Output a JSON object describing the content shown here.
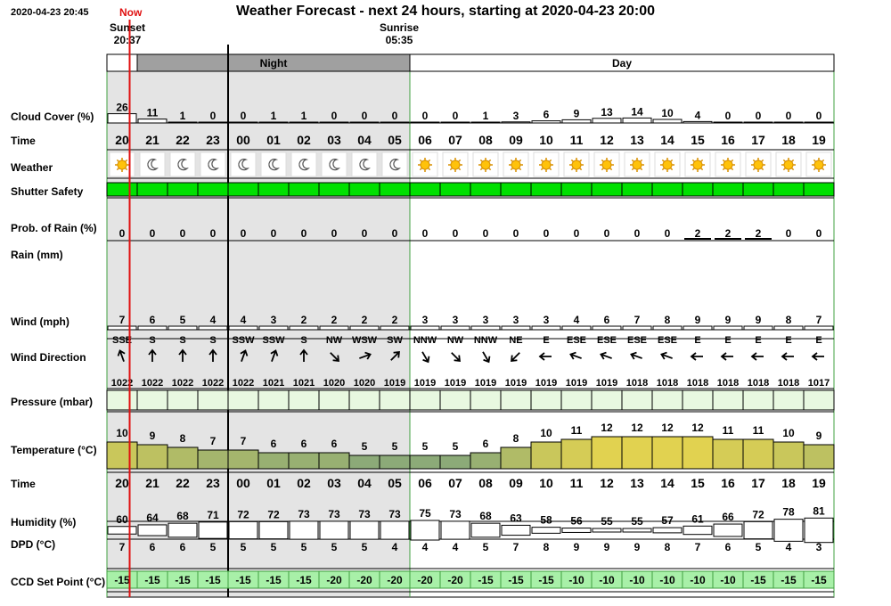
{
  "title": "Weather Forecast - next 24 hours, starting at 2020-04-23 20:00",
  "timestamp": "2020-04-23 20:45",
  "now_label": "Now",
  "sunset": {
    "label": "Sunset",
    "time": "20:37"
  },
  "sunrise": {
    "label": "Sunrise",
    "time": "05:35"
  },
  "period_labels": {
    "night": "Night",
    "day": "Day"
  },
  "row_labels": {
    "cloud": "Cloud Cover (%)",
    "time": "Time",
    "weather": "Weather",
    "shutter": "Shutter Safety",
    "rain_prob": "Prob. of Rain (%)",
    "rain": "Rain (mm)",
    "wind": "Wind (mph)",
    "wind_dir": "Wind Direction",
    "pressure": "Pressure (mbar)",
    "temperature": "Temperature (°C)",
    "time2": "Time",
    "humidity": "Humidity (%)",
    "dpd": "DPD (°C)",
    "ccd": "CCD Set Point (°C)"
  },
  "colors": {
    "now_line": "#e01010",
    "night_shade": "#e4e4e4",
    "night_header": "#a0a0a0",
    "shutter_safe": "#00e000",
    "pressure_fill": "#e8f8e0",
    "ccd_fill": "#a8f0a8",
    "grid_green": "#40a040"
  },
  "chart_data": {
    "type": "table",
    "hours": [
      "20",
      "21",
      "22",
      "23",
      "00",
      "01",
      "02",
      "03",
      "04",
      "05",
      "06",
      "07",
      "08",
      "09",
      "10",
      "11",
      "12",
      "13",
      "14",
      "15",
      "16",
      "17",
      "18",
      "19"
    ],
    "night_hours_count": 10,
    "cloud_cover": [
      26,
      11,
      1,
      0,
      0,
      1,
      1,
      0,
      0,
      0,
      0,
      0,
      1,
      3,
      6,
      9,
      13,
      14,
      10,
      4,
      0,
      0,
      0,
      0
    ],
    "weather_icons": [
      "sun-icon",
      "moon-icon",
      "moon-icon",
      "moon-icon",
      "moon-icon",
      "moon-icon",
      "moon-icon",
      "moon-icon",
      "moon-icon",
      "moon-icon",
      "sun-icon",
      "sun-icon",
      "sun-icon",
      "sun-icon",
      "sun-icon",
      "sun-icon",
      "sun-icon",
      "sun-icon",
      "sun-icon",
      "sun-icon",
      "sun-icon",
      "sun-icon",
      "sun-icon",
      "sun-icon"
    ],
    "shutter_safe": [
      true,
      true,
      true,
      true,
      true,
      true,
      true,
      true,
      true,
      true,
      true,
      true,
      true,
      true,
      true,
      true,
      true,
      true,
      true,
      true,
      true,
      true,
      true,
      true
    ],
    "rain_probability": [
      0,
      0,
      0,
      0,
      0,
      0,
      0,
      0,
      0,
      0,
      0,
      0,
      0,
      0,
      0,
      0,
      0,
      0,
      0,
      2,
      2,
      2,
      0,
      0
    ],
    "rain_mm": [
      0,
      0,
      0,
      0,
      0,
      0,
      0,
      0,
      0,
      0,
      0,
      0,
      0,
      0,
      0,
      0,
      0,
      0,
      0,
      0,
      0,
      0,
      0,
      0
    ],
    "wind_mph": [
      7,
      6,
      5,
      4,
      4,
      3,
      2,
      2,
      2,
      2,
      3,
      3,
      3,
      3,
      3,
      4,
      6,
      7,
      8,
      9,
      9,
      9,
      8,
      7
    ],
    "wind_direction": [
      "SSE",
      "S",
      "S",
      "S",
      "SSW",
      "SSW",
      "S",
      "NW",
      "WSW",
      "SW",
      "NNW",
      "NW",
      "NNW",
      "NE",
      "E",
      "ESE",
      "ESE",
      "ESE",
      "ESE",
      "E",
      "E",
      "E",
      "E",
      "E"
    ],
    "wind_arrow_rotation_deg": [
      -20,
      0,
      0,
      0,
      20,
      20,
      0,
      135,
      70,
      45,
      150,
      135,
      150,
      -135,
      -90,
      -70,
      -70,
      -70,
      -70,
      -90,
      -90,
      -90,
      -90,
      -90
    ],
    "pressure_mbar": [
      1022,
      1022,
      1022,
      1022,
      1022,
      1021,
      1021,
      1020,
      1020,
      1019,
      1019,
      1019,
      1019,
      1019,
      1019,
      1019,
      1019,
      1018,
      1018,
      1018,
      1018,
      1018,
      1018,
      1017
    ],
    "temperature_c": [
      10,
      9,
      8,
      7,
      7,
      6,
      6,
      6,
      5,
      5,
      5,
      5,
      6,
      8,
      10,
      11,
      12,
      12,
      12,
      12,
      11,
      11,
      10,
      9
    ],
    "humidity_pct": [
      60,
      64,
      68,
      71,
      72,
      72,
      73,
      73,
      73,
      73,
      75,
      73,
      68,
      63,
      58,
      56,
      55,
      55,
      57,
      61,
      66,
      72,
      78,
      81
    ],
    "dpd_c": [
      7,
      6,
      6,
      5,
      5,
      5,
      5,
      5,
      5,
      4,
      4,
      4,
      5,
      7,
      8,
      9,
      9,
      9,
      8,
      7,
      6,
      5,
      4,
      3
    ],
    "ccd_set_point_c": [
      -15,
      -15,
      -15,
      -15,
      -15,
      -15,
      -15,
      -20,
      -20,
      -20,
      -20,
      -20,
      -15,
      -15,
      -15,
      -10,
      -10,
      -10,
      -10,
      -10,
      -10,
      -15,
      -15,
      -15
    ],
    "now_fraction_of_first_hour": 0.75
  }
}
